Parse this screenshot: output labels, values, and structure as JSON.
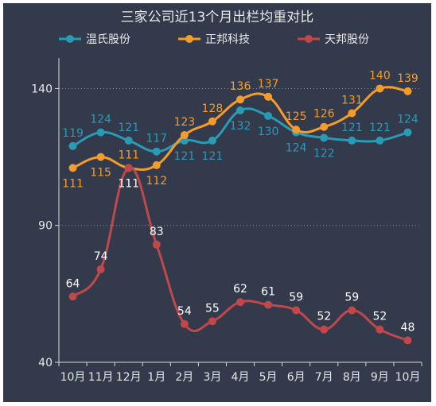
{
  "chart_data": {
    "type": "line",
    "title": "三家公司近13个月出栏均重对比",
    "categories": [
      "10月",
      "11月",
      "12月",
      "1月",
      "2月",
      "3月",
      "4月",
      "5月",
      "6月",
      "7月",
      "8月",
      "9月",
      "10月"
    ],
    "ylim": [
      40,
      150
    ],
    "yticks": [
      40,
      90,
      140
    ],
    "xlabel": "",
    "ylabel": "",
    "grid": "horizontal dotted",
    "legend_position": "top",
    "smooth": true,
    "series": [
      {
        "name": "温氏股份",
        "color": "#2b9bb5",
        "values": [
          119,
          124,
          121,
          117,
          121,
          121,
          132,
          130,
          124,
          122,
          121,
          121,
          124
        ],
        "label_position": [
          "above",
          "above",
          "above",
          "above",
          "below",
          "below",
          "below",
          "below",
          "below",
          "below",
          "above",
          "above",
          "above"
        ]
      },
      {
        "name": "正邦科技",
        "color": "#f39c2c",
        "values": [
          111,
          115,
          111,
          112,
          123,
          128,
          136,
          137,
          125,
          126,
          131,
          140,
          139
        ],
        "label_position": [
          "below",
          "below",
          "above",
          "below",
          "above",
          "above",
          "above",
          "above",
          "above",
          "above",
          "above",
          "above",
          "above"
        ]
      },
      {
        "name": "天邦股份",
        "color": "#c0484a",
        "label_color": "#ffffff",
        "values": [
          64,
          74,
          111,
          83,
          54,
          55,
          62,
          61,
          59,
          52,
          59,
          52,
          48
        ],
        "label_position": [
          "above",
          "above",
          "below",
          "above",
          "above",
          "above",
          "above",
          "above",
          "above",
          "above",
          "above",
          "above",
          "above"
        ]
      }
    ]
  }
}
